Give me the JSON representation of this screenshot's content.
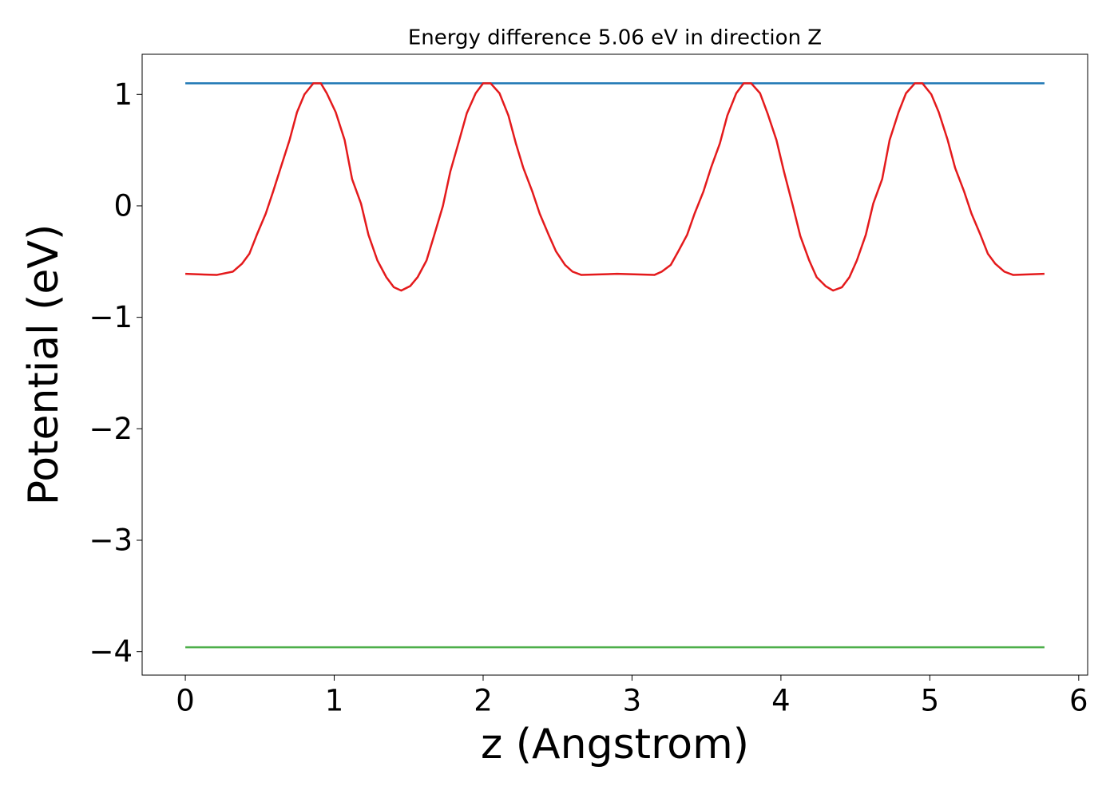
{
  "chart_data": {
    "type": "line",
    "title": "Energy difference 5.06 eV in direction Z",
    "xlabel": "z (Angstrom)",
    "ylabel": "Potential (eV)",
    "xlim": [
      -0.29,
      6.06
    ],
    "ylim": [
      -4.21,
      1.36
    ],
    "xticks": [
      0,
      1,
      2,
      3,
      4,
      5,
      6
    ],
    "yticks": [
      {
        "value": -4,
        "label": "−4"
      },
      {
        "value": -3,
        "label": "−3"
      },
      {
        "value": -2,
        "label": "−2"
      },
      {
        "value": -1,
        "label": "−1"
      },
      0,
      1
    ],
    "series": [
      {
        "color": "#1f77b4",
        "x": [
          0,
          5.77
        ],
        "values": [
          1.1,
          1.1
        ]
      },
      {
        "color": "#e41a1c",
        "x": [
          0,
          0.21,
          0.32,
          0.38,
          0.43,
          0.48,
          0.54,
          0.59,
          0.64,
          0.7,
          0.75,
          0.8,
          0.86,
          0.91,
          0.95,
          1.01,
          1.07,
          1.12,
          1.18,
          1.23,
          1.29,
          1.35,
          1.4,
          1.45,
          1.51,
          1.56,
          1.62,
          1.67,
          1.73,
          1.78,
          1.84,
          1.89,
          1.95,
          2.0,
          2.05,
          2.11,
          2.17,
          2.22,
          2.27,
          2.33,
          2.38,
          2.44,
          2.49,
          2.55,
          2.6,
          2.66,
          2.9,
          3.15,
          3.2,
          3.26,
          3.31,
          3.37,
          3.42,
          3.48,
          3.53,
          3.59,
          3.64,
          3.7,
          3.75,
          3.8,
          3.86,
          3.91,
          3.97,
          4.02,
          4.08,
          4.13,
          4.19,
          4.24,
          4.3,
          4.35,
          4.41,
          4.46,
          4.51,
          4.57,
          4.62,
          4.68,
          4.73,
          4.79,
          4.84,
          4.9,
          4.95,
          5.01,
          5.06,
          5.12,
          5.17,
          5.23,
          5.28,
          5.34,
          5.39,
          5.44,
          5.5,
          5.56,
          5.77
        ],
        "values": [
          -0.61,
          -0.62,
          -0.59,
          -0.52,
          -0.43,
          -0.26,
          -0.07,
          0.13,
          0.34,
          0.59,
          0.84,
          1.0,
          1.1,
          1.1,
          1.01,
          0.84,
          0.59,
          0.24,
          0.02,
          -0.26,
          -0.49,
          -0.64,
          -0.73,
          -0.76,
          -0.72,
          -0.64,
          -0.49,
          -0.27,
          0.0,
          0.31,
          0.59,
          0.83,
          1.01,
          1.1,
          1.1,
          1.01,
          0.81,
          0.56,
          0.34,
          0.13,
          -0.07,
          -0.26,
          -0.41,
          -0.53,
          -0.59,
          -0.62,
          -0.61,
          -0.62,
          -0.59,
          -0.53,
          -0.41,
          -0.26,
          -0.07,
          0.13,
          0.34,
          0.56,
          0.81,
          1.01,
          1.1,
          1.1,
          1.01,
          0.83,
          0.59,
          0.31,
          0.0,
          -0.27,
          -0.49,
          -0.64,
          -0.72,
          -0.76,
          -0.73,
          -0.64,
          -0.49,
          -0.26,
          0.02,
          0.24,
          0.59,
          0.84,
          1.01,
          1.1,
          1.1,
          1.0,
          0.84,
          0.59,
          0.34,
          0.13,
          -0.07,
          -0.26,
          -0.43,
          -0.52,
          -0.59,
          -0.62,
          -0.61
        ]
      },
      {
        "color": "#4daf4a",
        "x": [
          0,
          5.77
        ],
        "values": [
          -3.96,
          -3.96
        ]
      }
    ]
  }
}
